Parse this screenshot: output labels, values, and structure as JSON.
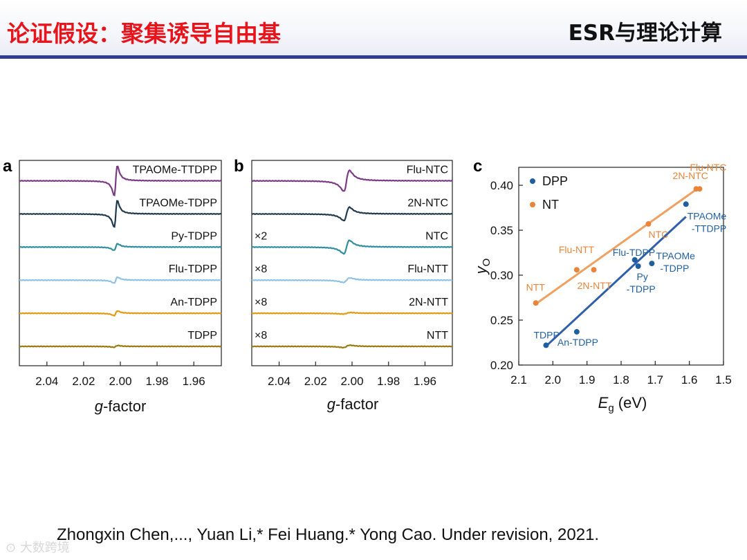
{
  "slide": {
    "title_left": "论证假设：聚集诱导自由基",
    "title_right": "ESR与理论计算",
    "citation": "Zhongxin Chen,..., Yuan Li,* Fei Huang.* Yong Cao. Under revision, 2021.",
    "watermark": "大数跨境"
  },
  "chart_data": [
    {
      "panel": "a",
      "type": "line",
      "title": "",
      "xlabel_italic": "g",
      "xlabel": "-factor",
      "x_reversed": true,
      "xlim": [
        2.055,
        1.945
      ],
      "x_ticks": [
        "2.04",
        "2.02",
        "2.00",
        "1.98",
        "1.96"
      ],
      "x_tick_values": [
        2.04,
        2.02,
        2.0,
        1.98,
        1.96
      ],
      "ylabel": "",
      "y_ticks": [],
      "series": [
        {
          "name": "TPAOMe-TTDPP",
          "color": "#7b3a86",
          "baseline_rank": 6,
          "peak_g": 2.0025,
          "amplitude": 1.0,
          "width_g": 0.0012,
          "multiplier": ""
        },
        {
          "name": "TPAOMe-TDPP",
          "color": "#1f3a4d",
          "baseline_rank": 5,
          "peak_g": 2.0025,
          "amplitude": 0.9,
          "width_g": 0.0012,
          "multiplier": ""
        },
        {
          "name": "Py-TDPP",
          "color": "#2f8ea0",
          "baseline_rank": 4,
          "peak_g": 2.0025,
          "amplitude": 0.22,
          "width_g": 0.0014,
          "multiplier": ""
        },
        {
          "name": "Flu-TDPP",
          "color": "#8ec2e6",
          "baseline_rank": 3,
          "peak_g": 2.0025,
          "amplitude": 0.2,
          "width_g": 0.0014,
          "multiplier": ""
        },
        {
          "name": "An-TDPP",
          "color": "#e39a12",
          "baseline_rank": 2,
          "peak_g": 2.0025,
          "amplitude": 0.16,
          "width_g": 0.0014,
          "multiplier": ""
        },
        {
          "name": "TDPP",
          "color": "#9a7a10",
          "baseline_rank": 1,
          "peak_g": 2.0025,
          "amplitude": 0.06,
          "width_g": 0.0016,
          "multiplier": ""
        }
      ]
    },
    {
      "panel": "b",
      "type": "line",
      "title": "",
      "xlabel_italic": "g",
      "xlabel": "-factor",
      "x_reversed": true,
      "xlim": [
        2.055,
        1.945
      ],
      "x_ticks": [
        "2.04",
        "2.02",
        "2.00",
        "1.98",
        "1.96"
      ],
      "x_tick_values": [
        2.04,
        2.02,
        2.0,
        1.98,
        1.96
      ],
      "ylabel": "",
      "y_ticks": [],
      "series": [
        {
          "name": "Flu-NTC",
          "color": "#7b3a86",
          "baseline_rank": 6,
          "peak_g": 2.003,
          "amplitude": 0.7,
          "width_g": 0.0022,
          "multiplier": ""
        },
        {
          "name": "2N-NTC",
          "color": "#1f3a4d",
          "baseline_rank": 5,
          "peak_g": 2.003,
          "amplitude": 0.45,
          "width_g": 0.0022,
          "multiplier": ""
        },
        {
          "name": "NTC",
          "color": "#2f8ea0",
          "baseline_rank": 4,
          "peak_g": 2.003,
          "amplitude": 0.45,
          "width_g": 0.0022,
          "multiplier": "×2"
        },
        {
          "name": "Flu-NTT",
          "color": "#8ec2e6",
          "baseline_rank": 3,
          "peak_g": 2.003,
          "amplitude": 0.15,
          "width_g": 0.0025,
          "multiplier": "×8"
        },
        {
          "name": "2N-NTT",
          "color": "#e39a12",
          "baseline_rank": 2,
          "peak_g": 2.003,
          "amplitude": 0.05,
          "width_g": 0.003,
          "multiplier": "×8"
        },
        {
          "name": "NTT",
          "color": "#9a7a10",
          "baseline_rank": 1,
          "peak_g": 2.003,
          "amplitude": 0.08,
          "width_g": 0.0025,
          "multiplier": "×8"
        }
      ]
    },
    {
      "panel": "c",
      "type": "scatter",
      "title": "",
      "xlabel_main": "E",
      "xlabel_sub": "g",
      "xlabel_unit": " (eV)",
      "ylabel_main": "y",
      "ylabel_sub": "O",
      "x_reversed": true,
      "xlim": [
        2.1,
        1.5
      ],
      "ylim": [
        0.2,
        0.42
      ],
      "x_ticks": [
        "2.1",
        "2.0",
        "1.9",
        "1.8",
        "1.7",
        "1.6",
        "1.5"
      ],
      "x_tick_values": [
        2.1,
        2.0,
        1.9,
        1.8,
        1.7,
        1.6,
        1.5
      ],
      "y_ticks": [
        "0.20",
        "0.25",
        "0.30",
        "0.35",
        "0.40"
      ],
      "y_tick_values": [
        0.2,
        0.25,
        0.3,
        0.35,
        0.4
      ],
      "legend_position": "top-left",
      "series": [
        {
          "name": "DPP",
          "color": "#1f5f9f",
          "fit_line_color": "#2f5fa8",
          "fit_x": [
            2.02,
            1.61
          ],
          "fit_y": [
            0.221,
            0.365
          ],
          "points": [
            {
              "label": "TDPP",
              "x": 2.02,
              "y": 0.222
            },
            {
              "label": "An-TDPP",
              "x": 1.93,
              "y": 0.237
            },
            {
              "label": "Flu-TDPP",
              "x": 1.76,
              "y": 0.317
            },
            {
              "label": "Py -TDPP",
              "x": 1.75,
              "y": 0.31
            },
            {
              "label": "TPAOMe -TDPP",
              "x": 1.71,
              "y": 0.313
            },
            {
              "label": "TPAOMe -TTDPP",
              "x": 1.61,
              "y": 0.379
            }
          ]
        },
        {
          "name": "NT",
          "color": "#e8853a",
          "fit_line_color": "#f0a060",
          "fit_x": [
            2.05,
            1.57
          ],
          "fit_y": [
            0.268,
            0.398
          ],
          "points": [
            {
              "label": "NTT",
              "x": 2.05,
              "y": 0.269
            },
            {
              "label": "Flu-NTT",
              "x": 1.93,
              "y": 0.306
            },
            {
              "label": "2N-NTT",
              "x": 1.88,
              "y": 0.306
            },
            {
              "label": "NTC",
              "x": 1.72,
              "y": 0.357
            },
            {
              "label": "2N-NTC",
              "x": 1.58,
              "y": 0.396
            },
            {
              "label": "Flu-NTC",
              "x": 1.57,
              "y": 0.396
            }
          ]
        }
      ]
    }
  ],
  "panels": {
    "a_letter": "a",
    "b_letter": "b",
    "c_letter": "c"
  }
}
